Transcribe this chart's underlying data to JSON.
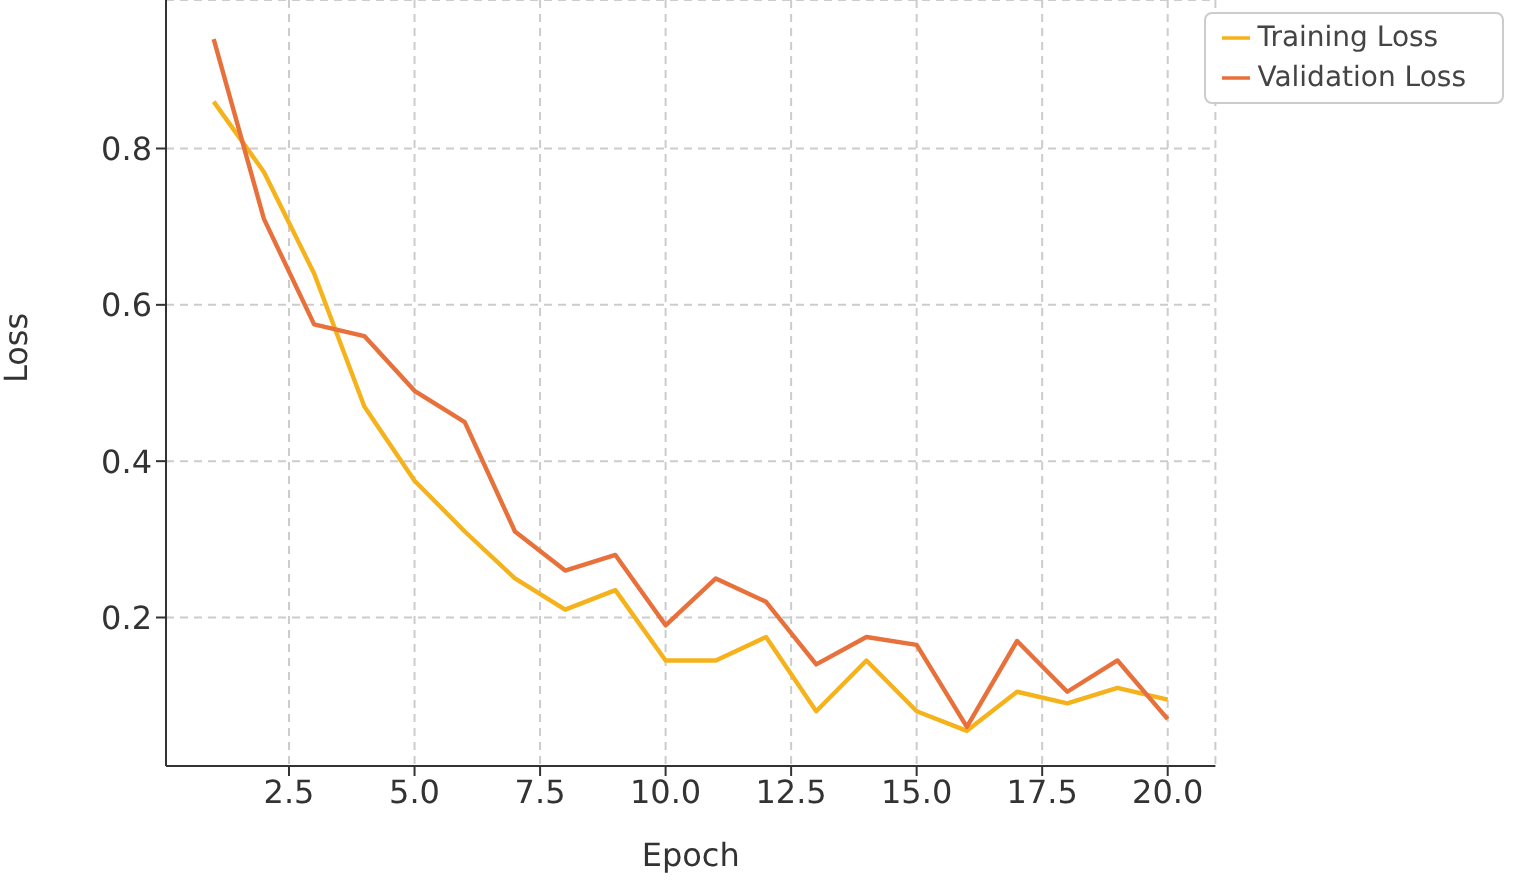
{
  "chart_data": {
    "type": "line",
    "xlabel": "Epoch",
    "ylabel": "Loss",
    "x": [
      1,
      2,
      3,
      4,
      5,
      6,
      7,
      8,
      9,
      10,
      11,
      12,
      13,
      14,
      15,
      16,
      17,
      18,
      19,
      20
    ],
    "series": [
      {
        "name": "Training Loss",
        "color": "#f5b21b",
        "values": [
          0.86,
          0.77,
          0.64,
          0.47,
          0.375,
          0.31,
          0.25,
          0.21,
          0.235,
          0.145,
          0.145,
          0.175,
          0.08,
          0.145,
          0.08,
          0.055,
          0.105,
          0.09,
          0.11,
          0.095
        ]
      },
      {
        "name": "Validation Loss",
        "color": "#e8703a",
        "values": [
          0.94,
          0.71,
          0.575,
          0.56,
          0.49,
          0.45,
          0.31,
          0.26,
          0.28,
          0.19,
          0.25,
          0.22,
          0.14,
          0.175,
          0.165,
          0.06,
          0.17,
          0.105,
          0.145,
          0.07
        ]
      }
    ],
    "xlim": [
      0.05,
      20.95
    ],
    "xticks": [
      2.5,
      {
        "value": 5,
        "label": "5.0"
      },
      7.5,
      {
        "value": 10,
        "label": "10.0"
      },
      12.5,
      {
        "value": 15,
        "label": "15.0"
      },
      17.5,
      {
        "value": 20,
        "label": "20.0"
      }
    ],
    "ylim": [
      0.01,
      0.99
    ],
    "yticks": [
      0.2,
      0.4,
      0.6,
      0.8
    ],
    "grid": true,
    "legend": "top right",
    "marker": "none",
    "line_style": "solid"
  }
}
